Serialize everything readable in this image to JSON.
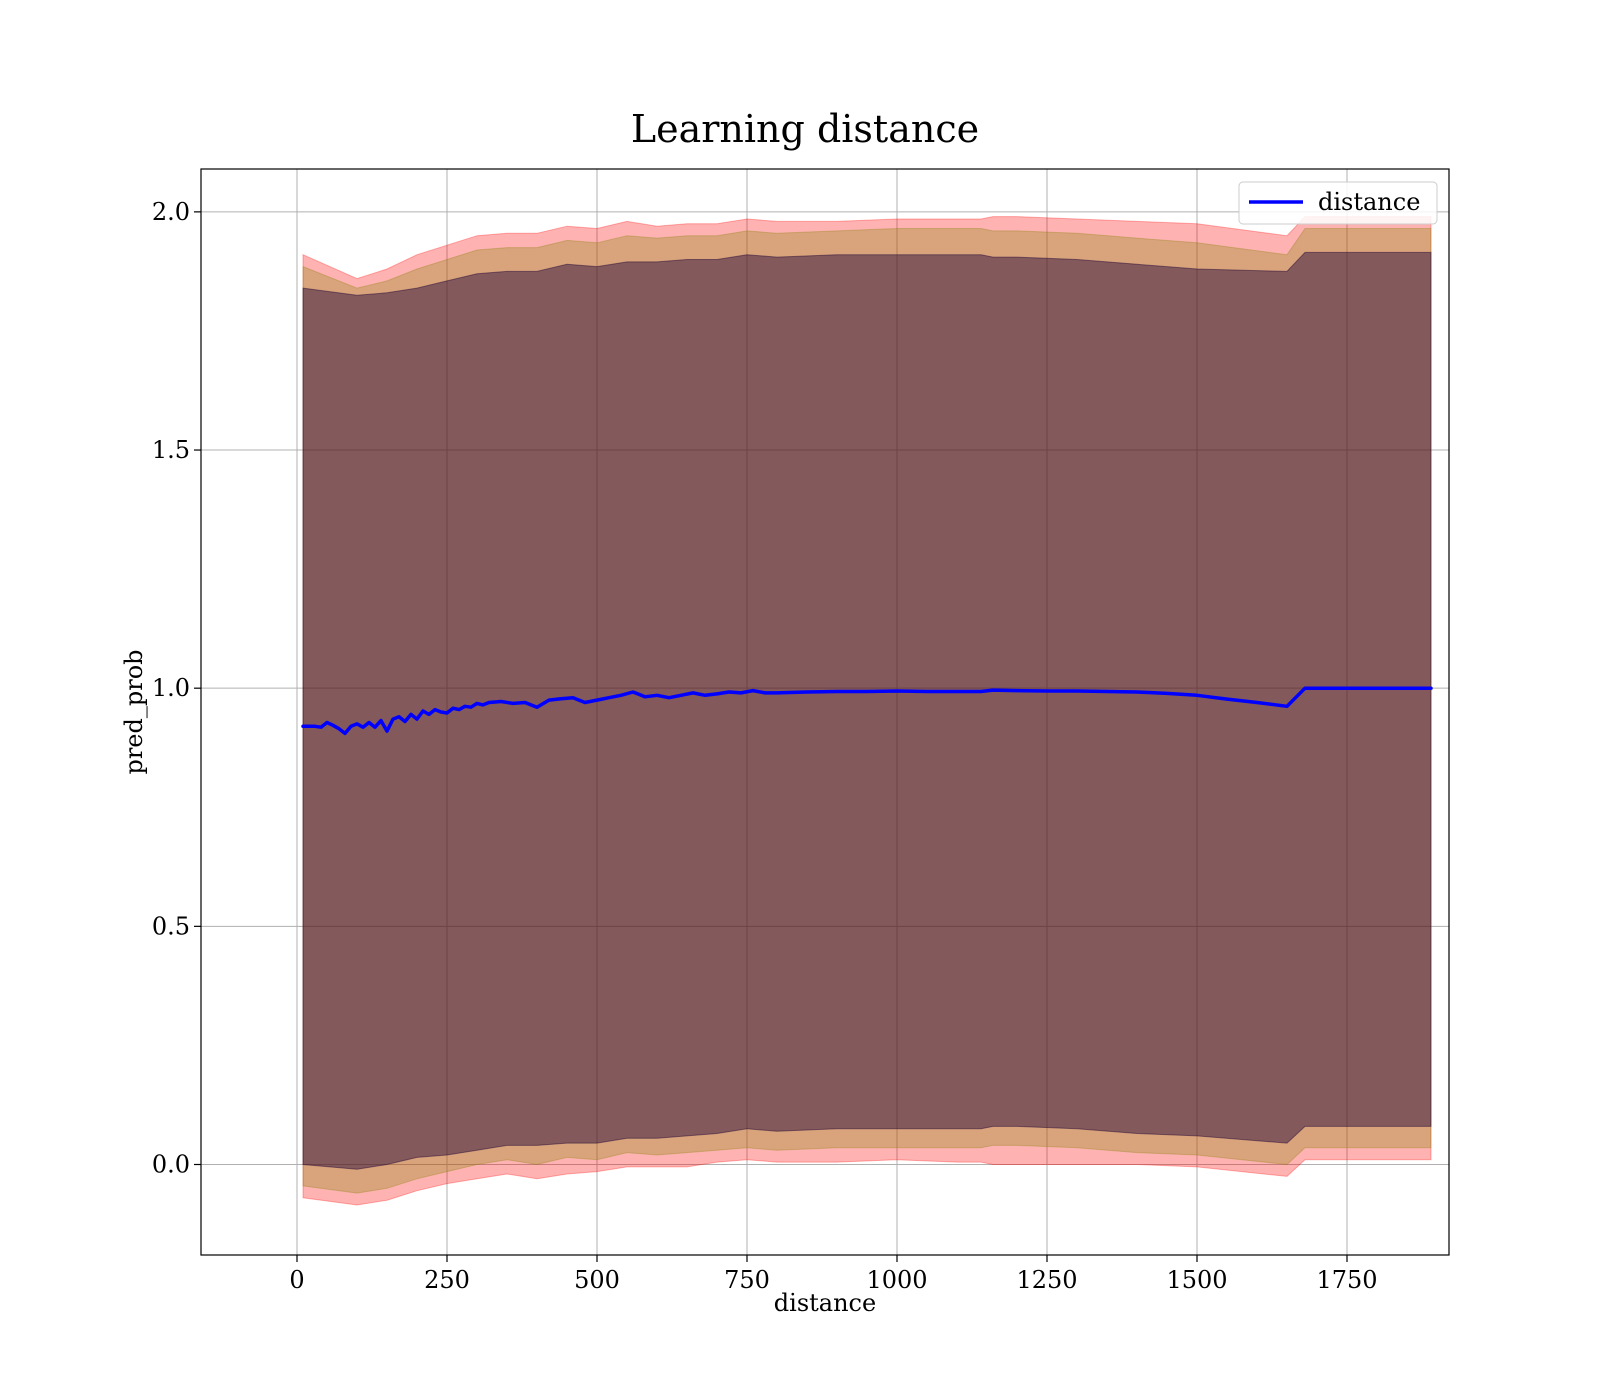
{
  "chart_data": {
    "type": "line",
    "title": "Learning distance",
    "xlabel": "distance",
    "ylabel": "pred_prob",
    "xlim": [
      -160,
      1920
    ],
    "ylim": [
      -0.19,
      2.09
    ],
    "xticks": [
      0,
      250,
      500,
      750,
      1000,
      1250,
      1500,
      1750
    ],
    "xtick_labels": [
      "0",
      "250",
      "500",
      "750",
      "1000",
      "1250",
      "1500",
      "1750"
    ],
    "yticks": [
      0.0,
      0.5,
      1.0,
      1.5,
      2.0
    ],
    "ytick_labels": [
      "0.0",
      "0.5",
      "1.0",
      "1.5",
      "2.0"
    ],
    "grid": true,
    "legend": {
      "position": "top-right",
      "entries": [
        "distance"
      ]
    },
    "series": [
      {
        "name": "distance",
        "color": "#0000ff",
        "x": [
          10,
          30,
          40,
          50,
          60,
          70,
          80,
          90,
          100,
          110,
          120,
          130,
          140,
          150,
          160,
          170,
          180,
          190,
          200,
          210,
          220,
          230,
          240,
          250,
          260,
          270,
          280,
          290,
          300,
          310,
          320,
          340,
          360,
          380,
          400,
          420,
          440,
          460,
          480,
          500,
          520,
          540,
          560,
          580,
          600,
          620,
          640,
          660,
          680,
          700,
          720,
          740,
          760,
          780,
          800,
          850,
          900,
          950,
          1000,
          1050,
          1100,
          1140,
          1160,
          1200,
          1250,
          1300,
          1350,
          1400,
          1450,
          1500,
          1550,
          1600,
          1650,
          1680,
          1750,
          1890
        ],
        "values": [
          0.92,
          0.92,
          0.918,
          0.928,
          0.922,
          0.915,
          0.905,
          0.92,
          0.925,
          0.918,
          0.928,
          0.918,
          0.932,
          0.91,
          0.935,
          0.94,
          0.93,
          0.945,
          0.935,
          0.952,
          0.945,
          0.955,
          0.95,
          0.948,
          0.958,
          0.955,
          0.962,
          0.96,
          0.968,
          0.965,
          0.97,
          0.972,
          0.968,
          0.97,
          0.96,
          0.975,
          0.978,
          0.98,
          0.97,
          0.975,
          0.98,
          0.985,
          0.992,
          0.982,
          0.985,
          0.98,
          0.985,
          0.99,
          0.985,
          0.988,
          0.992,
          0.99,
          0.995,
          0.99,
          0.99,
          0.992,
          0.993,
          0.993,
          0.994,
          0.993,
          0.993,
          0.993,
          0.996,
          0.995,
          0.994,
          0.994,
          0.993,
          0.992,
          0.989,
          0.985,
          0.977,
          0.97,
          0.962,
          1.0,
          1.0,
          1.0
        ]
      }
    ],
    "bands": [
      {
        "color": "#ff0000",
        "opacity": 0.3,
        "x": [
          10,
          100,
          150,
          200,
          250,
          300,
          350,
          400,
          450,
          500,
          550,
          600,
          650,
          700,
          750,
          800,
          900,
          1000,
          1100,
          1140,
          1160,
          1200,
          1300,
          1400,
          1500,
          1650,
          1680,
          1890
        ],
        "upper": [
          1.91,
          1.86,
          1.88,
          1.91,
          1.93,
          1.95,
          1.955,
          1.955,
          1.97,
          1.965,
          1.98,
          1.97,
          1.975,
          1.975,
          1.985,
          1.98,
          1.98,
          1.985,
          1.985,
          1.985,
          1.99,
          1.99,
          1.985,
          1.98,
          1.975,
          1.95,
          1.99,
          1.99
        ],
        "lower": [
          -0.07,
          -0.085,
          -0.075,
          -0.055,
          -0.04,
          -0.03,
          -0.02,
          -0.03,
          -0.02,
          -0.015,
          -0.005,
          -0.005,
          -0.005,
          0.005,
          0.01,
          0.005,
          0.005,
          0.01,
          0.005,
          0.005,
          0.0,
          0.0,
          0.0,
          0.0,
          -0.005,
          -0.025,
          0.01,
          0.01
        ]
      },
      {
        "color": "#808000",
        "opacity": 0.3,
        "x": [
          10,
          100,
          150,
          200,
          250,
          300,
          350,
          400,
          450,
          500,
          550,
          600,
          650,
          700,
          750,
          800,
          900,
          1000,
          1100,
          1140,
          1160,
          1200,
          1300,
          1400,
          1500,
          1650,
          1680,
          1890
        ],
        "upper": [
          1.885,
          1.84,
          1.855,
          1.88,
          1.9,
          1.92,
          1.925,
          1.925,
          1.94,
          1.935,
          1.95,
          1.945,
          1.95,
          1.95,
          1.96,
          1.955,
          1.96,
          1.965,
          1.965,
          1.965,
          1.96,
          1.96,
          1.955,
          1.945,
          1.935,
          1.91,
          1.965,
          1.965
        ],
        "lower": [
          -0.045,
          -0.06,
          -0.05,
          -0.03,
          -0.015,
          0.0,
          0.01,
          0.0,
          0.015,
          0.01,
          0.025,
          0.02,
          0.025,
          0.03,
          0.035,
          0.03,
          0.035,
          0.035,
          0.035,
          0.035,
          0.04,
          0.04,
          0.035,
          0.025,
          0.02,
          0.0,
          0.035,
          0.035
        ]
      },
      {
        "color": "#1a0033",
        "opacity": 0.45,
        "x": [
          10,
          100,
          150,
          200,
          250,
          300,
          350,
          400,
          450,
          500,
          550,
          600,
          650,
          700,
          750,
          800,
          900,
          1000,
          1100,
          1140,
          1160,
          1200,
          1300,
          1400,
          1500,
          1650,
          1680,
          1890
        ],
        "upper": [
          1.84,
          1.825,
          1.83,
          1.84,
          1.855,
          1.87,
          1.875,
          1.875,
          1.89,
          1.885,
          1.895,
          1.895,
          1.9,
          1.9,
          1.91,
          1.905,
          1.91,
          1.91,
          1.91,
          1.91,
          1.905,
          1.905,
          1.9,
          1.89,
          1.88,
          1.875,
          1.915,
          1.915
        ],
        "lower": [
          0.0,
          -0.01,
          0.0,
          0.015,
          0.02,
          0.03,
          0.04,
          0.04,
          0.045,
          0.045,
          0.055,
          0.055,
          0.06,
          0.065,
          0.075,
          0.07,
          0.075,
          0.075,
          0.075,
          0.075,
          0.08,
          0.08,
          0.075,
          0.065,
          0.06,
          0.045,
          0.08,
          0.08
        ]
      }
    ]
  }
}
